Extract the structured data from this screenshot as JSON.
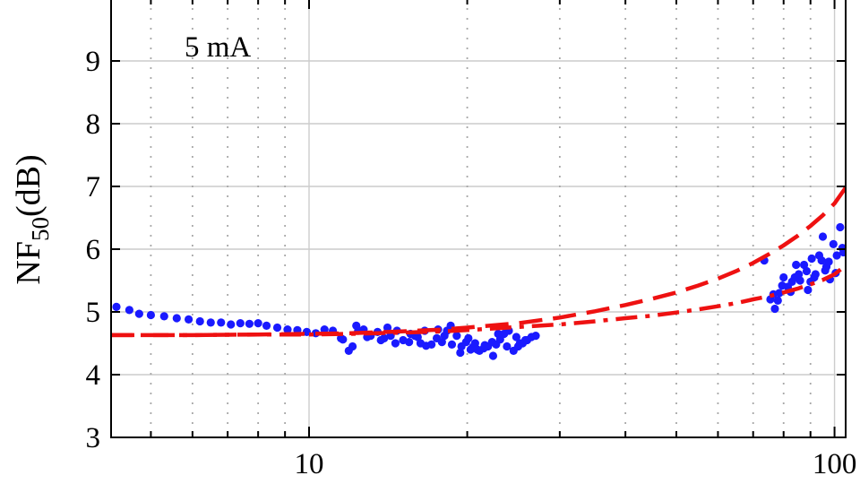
{
  "chart_data": {
    "type": "scatter",
    "title": "",
    "annotation": "5 mA",
    "ylabel": {
      "main": "NF",
      "sub": "50",
      "unit": "(dB)"
    },
    "xlabel": "",
    "x_scale": "log",
    "xlim": [
      4.2,
      105
    ],
    "ylim": [
      3,
      10
    ],
    "x_ticks": [
      10,
      100
    ],
    "x_tick_labels": [
      "10",
      "100"
    ],
    "y_ticks": [
      3,
      4,
      5,
      6,
      7,
      8,
      9
    ],
    "y_tick_labels": [
      "3",
      "4",
      "5",
      "6",
      "7",
      "8",
      "9"
    ],
    "grid": true,
    "colors": {
      "points": "#1a1aff",
      "model": "#ee1111",
      "grid": "#cccccc",
      "axis": "#000000"
    },
    "series": [
      {
        "style": "points",
        "x": [
          4.3,
          4.55,
          4.75,
          5.0,
          5.3,
          5.6,
          5.9,
          6.2,
          6.5,
          6.8,
          7.1,
          7.4,
          7.7,
          8.0,
          8.3,
          8.7,
          9.1,
          9.5,
          9.9,
          10.3,
          10.7,
          11.1,
          11.5,
          11.9,
          12.3,
          12.7,
          13.1,
          13.5,
          13.9,
          14.3,
          14.7,
          15.1,
          15.5,
          15.9,
          16.3,
          16.7,
          17.1,
          17.5,
          17.9,
          18.3,
          18.7,
          19.1,
          19.5,
          19.9,
          20.3,
          20.7,
          21.1,
          21.5,
          21.9,
          22.3,
          22.7,
          23.1,
          23.5,
          24.0,
          24.5,
          25.0,
          25.5,
          26.0,
          26.5,
          27.0,
          11.6,
          12.1,
          12.9,
          13.7,
          14.6,
          15.6,
          16.6,
          17.6,
          18.6,
          19.4,
          20.1,
          20.9,
          21.6,
          22.4,
          23.8,
          24.8,
          25.8,
          12.4,
          14.1,
          16.1,
          18.1,
          20.5,
          22.9,
          25.2,
          73.5,
          75.5,
          77.0,
          78.5,
          80.0,
          81.5,
          83.0,
          84.5,
          86.0,
          87.5,
          89.0,
          90.5,
          92.0,
          93.5,
          95.0,
          96.5,
          98.0,
          99.5,
          101.0,
          102.5,
          104.0,
          76.5,
          79.5,
          82.5,
          85.5,
          88.5,
          91.5,
          94.5,
          97.5,
          100.5,
          103.5,
          78.0,
          84.0,
          90.0,
          96.0
        ],
        "y": [
          5.08,
          5.03,
          4.97,
          4.95,
          4.93,
          4.9,
          4.88,
          4.85,
          4.83,
          4.83,
          4.8,
          4.82,
          4.81,
          4.82,
          4.78,
          4.75,
          4.72,
          4.71,
          4.68,
          4.66,
          4.72,
          4.7,
          4.58,
          4.38,
          4.78,
          4.72,
          4.62,
          4.68,
          4.58,
          4.62,
          4.7,
          4.55,
          4.52,
          4.62,
          4.5,
          4.46,
          4.48,
          4.58,
          4.52,
          4.7,
          4.48,
          4.62,
          4.45,
          4.52,
          4.4,
          4.5,
          4.38,
          4.42,
          4.45,
          4.52,
          4.48,
          4.56,
          4.65,
          4.7,
          4.38,
          4.45,
          4.5,
          4.55,
          4.6,
          4.62,
          4.56,
          4.45,
          4.6,
          4.55,
          4.5,
          4.65,
          4.7,
          4.72,
          4.78,
          4.35,
          4.58,
          4.4,
          4.47,
          4.3,
          4.45,
          4.6,
          4.55,
          4.7,
          4.75,
          4.6,
          4.62,
          4.44,
          4.65,
          4.5,
          5.82,
          5.2,
          5.05,
          5.3,
          5.55,
          5.4,
          5.48,
          5.75,
          5.5,
          5.75,
          5.35,
          5.85,
          5.6,
          5.9,
          6.2,
          5.72,
          5.52,
          6.08,
          5.9,
          6.35,
          5.95,
          5.28,
          5.42,
          5.32,
          5.6,
          5.65,
          5.55,
          5.82,
          5.8,
          5.62,
          6.02,
          5.18,
          5.55,
          5.48,
          5.66
        ]
      },
      {
        "style": "dashed",
        "x": [
          4.2,
          6,
          8,
          10,
          12,
          15,
          18,
          20,
          25,
          30,
          35,
          40,
          45,
          50,
          55,
          60,
          65,
          70,
          75,
          80,
          85,
          90,
          95,
          100,
          105
        ],
        "y": [
          4.63,
          4.63,
          4.64,
          4.65,
          4.66,
          4.69,
          4.72,
          4.75,
          4.82,
          4.91,
          5.01,
          5.11,
          5.21,
          5.31,
          5.42,
          5.53,
          5.65,
          5.78,
          5.92,
          6.06,
          6.21,
          6.37,
          6.54,
          6.73,
          6.98
        ]
      },
      {
        "style": "dash-dot",
        "x": [
          4.2,
          6,
          8,
          10,
          12,
          15,
          18,
          20,
          25,
          30,
          35,
          40,
          45,
          50,
          55,
          60,
          65,
          70,
          75,
          80,
          85,
          90,
          95,
          100,
          105
        ],
        "y": [
          4.63,
          4.63,
          4.64,
          4.64,
          4.65,
          4.67,
          4.69,
          4.71,
          4.76,
          4.8,
          4.85,
          4.9,
          4.94,
          4.99,
          5.04,
          5.09,
          5.14,
          5.2,
          5.25,
          5.31,
          5.37,
          5.44,
          5.51,
          5.6,
          5.74
        ]
      }
    ]
  }
}
